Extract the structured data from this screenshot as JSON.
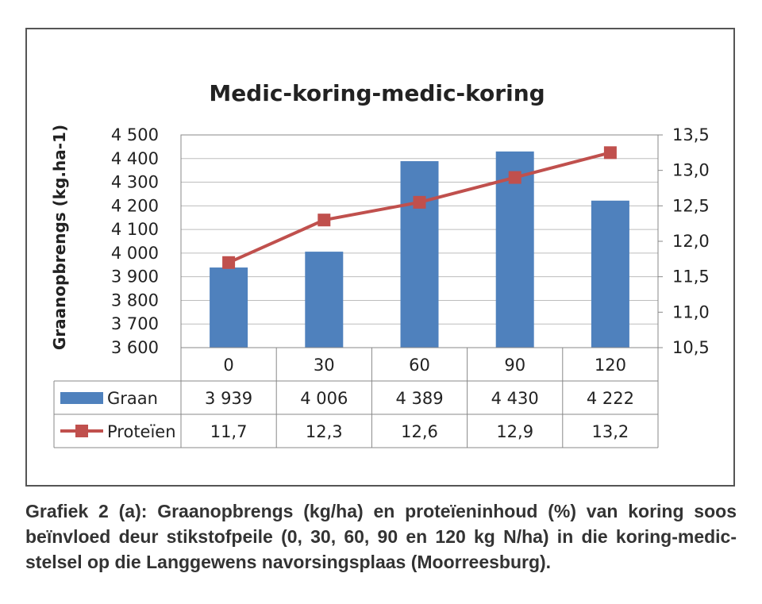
{
  "chart_data": {
    "type": "bar",
    "title": "Medic-koring-medic-koring",
    "ylabel": "Graanopbrengs (kg.ha-1)",
    "categories": [
      "0",
      "30",
      "60",
      "90",
      "120"
    ],
    "ylim": [
      3600,
      4500
    ],
    "y_ticks": [
      "4 500",
      "4 400",
      "4 300",
      "4 200",
      "4 100",
      "4 000",
      "3 900",
      "3 800",
      "3 700",
      "3 600"
    ],
    "y2lim": [
      10.5,
      13.5
    ],
    "y2_ticks": [
      "13,5",
      "13,0",
      "12,5",
      "12,0",
      "11,5",
      "11,0",
      "10,5"
    ],
    "grid": true,
    "series": [
      {
        "name": "Graan",
        "type": "bar",
        "color": "#4f81bd",
        "values": [
          3939,
          4006,
          4389,
          4430,
          4222
        ],
        "labels": [
          "3 939",
          "4 006",
          "4 389",
          "4 430",
          "4 222"
        ]
      },
      {
        "name": "Proteïen",
        "type": "line",
        "axis": "secondary",
        "color": "#c0504d",
        "values": [
          11.7,
          12.3,
          12.55,
          12.9,
          13.25
        ],
        "labels": [
          "11,7",
          "12,3",
          "12,6",
          "12,9",
          "13,2"
        ]
      }
    ]
  },
  "caption": "Grafiek 2 (a): Graanopbrengs (kg/ha) en proteïeninhoud (%) van koring soos beïnvloed deur stikstofpeile (0, 30, 60, 90 en 120 kg N/ha) in die koring-medic-stelsel op die Langgewens navorsingsplaas (Moorreesburg)."
}
